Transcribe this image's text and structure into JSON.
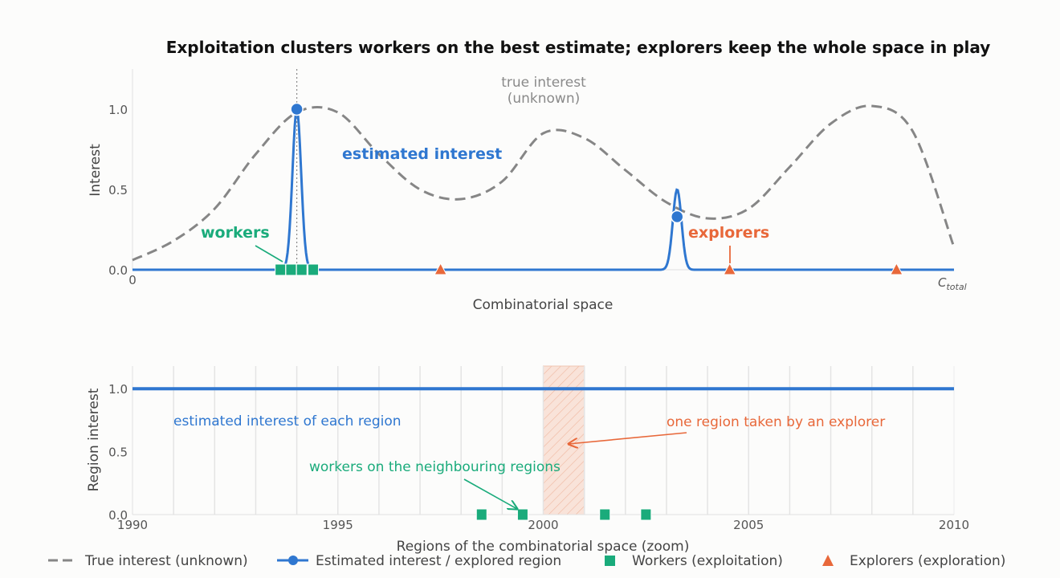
{
  "chart_data": [
    {
      "type": "line",
      "title": "Exploitation clusters workers on the best estimate; explorers keep the whole space in play",
      "xlabel": "Combinatorial space",
      "ylabel": "Interest",
      "xlim": [
        0,
        1
      ],
      "ylim": [
        0,
        1.25
      ],
      "x_tick_labels": {
        "start": "0",
        "end_base": "C",
        "end_sub": "total"
      },
      "y_ticks": [
        0.0,
        0.5,
        1.0
      ],
      "y_tick_labels": [
        "0.0",
        "0.5",
        "1.0"
      ],
      "colors": {
        "true": "#868686",
        "estimated": "#2f77d0",
        "workers": "#1aab7b",
        "explorers": "#e8683a"
      },
      "series": [
        {
          "name": "True interest (unknown)",
          "style": "dashed",
          "x": [
            0.0,
            0.05,
            0.1,
            0.15,
            0.2,
            0.25,
            0.3,
            0.35,
            0.4,
            0.45,
            0.5,
            0.55,
            0.6,
            0.65,
            0.7,
            0.75,
            0.8,
            0.85,
            0.9,
            0.95,
            1.0
          ],
          "y": [
            0.06,
            0.18,
            0.38,
            0.72,
            0.98,
            0.98,
            0.72,
            0.5,
            0.44,
            0.55,
            0.85,
            0.82,
            0.62,
            0.42,
            0.32,
            0.38,
            0.64,
            0.91,
            1.02,
            0.86,
            0.14
          ]
        },
        {
          "name": "Estimated interest",
          "peaks": [
            {
              "x": 0.2,
              "height": 1.0
            },
            {
              "x": 0.663,
              "height": 0.5
            }
          ],
          "baseline": 0.0
        }
      ],
      "estimated_markers": [
        {
          "x": 0.2,
          "y": 1.0
        },
        {
          "x": 0.663,
          "y": 0.33
        }
      ],
      "workers": [
        0.18,
        0.193,
        0.206,
        0.22
      ],
      "explorers": [
        0.375,
        0.727,
        0.93
      ],
      "best_estimate_line_x": 0.2,
      "annotations": {
        "true_interest": [
          "true interest",
          "(unknown)"
        ],
        "estimated_interest": "estimated interest",
        "workers": "workers",
        "explorers": "explorers"
      }
    },
    {
      "type": "line",
      "xlabel": "Regions of the combinatorial space (zoom)",
      "ylabel": "Region interest",
      "xlim": [
        1990,
        2010
      ],
      "ylim": [
        0,
        1.18
      ],
      "x_ticks": [
        1990,
        1995,
        2000,
        2005,
        2010
      ],
      "y_ticks": [
        0.0,
        0.5,
        1.0
      ],
      "y_tick_labels": [
        "0.0",
        "0.5",
        "1.0"
      ],
      "region_boundaries": [
        1991,
        1992,
        1993,
        1994,
        1995,
        1996,
        1997,
        1998,
        1999,
        2000,
        2001,
        2002,
        2003,
        2004,
        2005,
        2006,
        2007,
        2008,
        2009
      ],
      "series": [
        {
          "name": "estimated interest of each region",
          "x": [
            1990,
            2010
          ],
          "y": [
            1.0,
            1.0
          ]
        }
      ],
      "explorer_region": [
        2000,
        2001
      ],
      "workers": [
        {
          "x": 1998.5,
          "y": 0.0
        },
        {
          "x": 1999.5,
          "y": 0.0
        },
        {
          "x": 2001.5,
          "y": 0.0
        },
        {
          "x": 2002.5,
          "y": 0.0
        }
      ],
      "annotations": {
        "estimated": "estimated interest of each region",
        "explorer_region": "one region taken by an explorer",
        "workers": "workers on the neighbouring regions"
      }
    }
  ],
  "legend": [
    {
      "label": "True interest (unknown)",
      "icon": "dashed-line"
    },
    {
      "label": "Estimated interest / explored region",
      "icon": "line-with-dot"
    },
    {
      "label": "Workers (exploitation)",
      "icon": "square"
    },
    {
      "label": "Explorers (exploration)",
      "icon": "triangle"
    }
  ]
}
